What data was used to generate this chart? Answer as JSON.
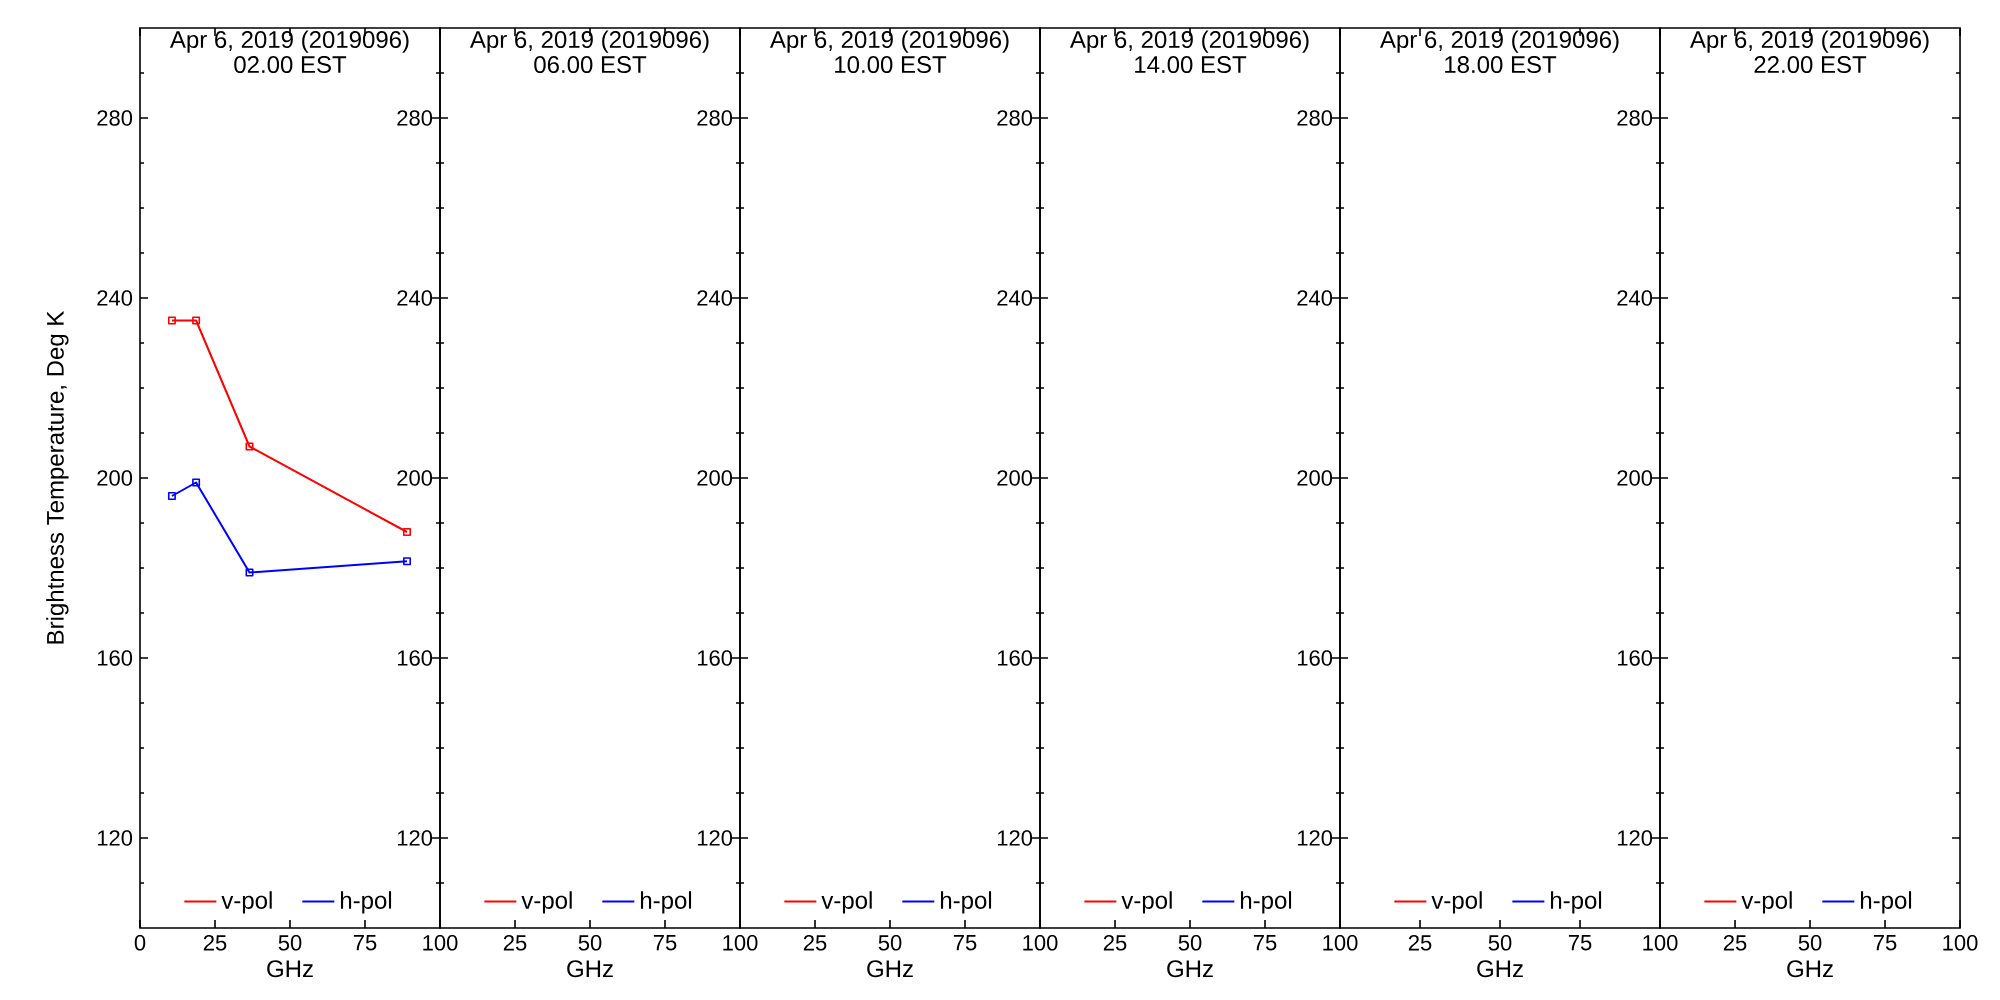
{
  "chart_data": [
    {
      "type": "line",
      "title": "Apr 6, 2019 (2019096)",
      "subtitle": "02.00 EST",
      "xlabel": "GHz",
      "ylabel": "Brightness Temperature, Deg K",
      "x": [
        10.65,
        18.7,
        36.5,
        89
      ],
      "series": [
        {
          "name": "v-pol",
          "color": "#ff0000",
          "values": [
            235,
            235,
            207,
            188
          ]
        },
        {
          "name": "h-pol",
          "color": "#0000ff",
          "values": [
            196,
            199,
            179,
            181.5
          ]
        }
      ],
      "xlim": [
        0,
        100
      ],
      "xticks": [
        0,
        25,
        50,
        75,
        100
      ],
      "ylim": [
        100,
        300
      ],
      "yticks": [
        {
          "value": 110,
          "label": null
        },
        120,
        {
          "value": 130,
          "label": null
        },
        {
          "value": 140,
          "label": null
        },
        {
          "value": 150,
          "label": null
        },
        160,
        {
          "value": 170,
          "label": null
        },
        {
          "value": 180,
          "label": null
        },
        {
          "value": 190,
          "label": null
        },
        200,
        {
          "value": 210,
          "label": null
        },
        {
          "value": 220,
          "label": null
        },
        {
          "value": 230,
          "label": null
        },
        240,
        {
          "value": 250,
          "label": null
        },
        {
          "value": 260,
          "label": null
        },
        {
          "value": 270,
          "label": null
        },
        280,
        {
          "value": 290,
          "label": null
        }
      ],
      "legend": "bottom",
      "marker": "square"
    },
    {
      "type": "line",
      "title": "Apr 6, 2019 (2019096)",
      "subtitle": "06.00 EST",
      "xlabel": "GHz",
      "x": [
        null
      ],
      "series": [
        {
          "name": "v-pol",
          "color": "#ff0000",
          "values": [
            null
          ]
        },
        {
          "name": "h-pol",
          "color": "#0000ff",
          "values": [
            null
          ]
        }
      ],
      "xlim": [
        0,
        100
      ],
      "xticks": [
        25,
        50,
        75,
        100
      ],
      "ylim": [
        100,
        300
      ],
      "yticks": [
        {
          "value": 110,
          "label": null
        },
        120,
        {
          "value": 130,
          "label": null
        },
        {
          "value": 140,
          "label": null
        },
        {
          "value": 150,
          "label": null
        },
        160,
        {
          "value": 170,
          "label": null
        },
        {
          "value": 180,
          "label": null
        },
        {
          "value": 190,
          "label": null
        },
        200,
        {
          "value": 210,
          "label": null
        },
        {
          "value": 220,
          "label": null
        },
        {
          "value": 230,
          "label": null
        },
        240,
        {
          "value": 250,
          "label": null
        },
        {
          "value": 260,
          "label": null
        },
        {
          "value": 270,
          "label": null
        },
        280,
        {
          "value": 290,
          "label": null
        }
      ],
      "legend": "bottom"
    },
    {
      "type": "line",
      "title": "Apr 6, 2019 (2019096)",
      "subtitle": "10.00 EST",
      "xlabel": "GHz",
      "x": [
        null
      ],
      "series": [
        {
          "name": "v-pol",
          "color": "#ff0000",
          "values": [
            null
          ]
        },
        {
          "name": "h-pol",
          "color": "#0000ff",
          "values": [
            null
          ]
        }
      ],
      "xlim": [
        0,
        100
      ],
      "xticks": [
        25,
        50,
        75,
        100
      ],
      "ylim": [
        100,
        300
      ],
      "yticks": [
        {
          "value": 110,
          "label": null
        },
        120,
        {
          "value": 130,
          "label": null
        },
        {
          "value": 140,
          "label": null
        },
        {
          "value": 150,
          "label": null
        },
        160,
        {
          "value": 170,
          "label": null
        },
        {
          "value": 180,
          "label": null
        },
        {
          "value": 190,
          "label": null
        },
        200,
        {
          "value": 210,
          "label": null
        },
        {
          "value": 220,
          "label": null
        },
        {
          "value": 230,
          "label": null
        },
        240,
        {
          "value": 250,
          "label": null
        },
        {
          "value": 260,
          "label": null
        },
        {
          "value": 270,
          "label": null
        },
        280,
        {
          "value": 290,
          "label": null
        }
      ],
      "legend": "bottom"
    },
    {
      "type": "line",
      "title": "Apr 6, 2019 (2019096)",
      "subtitle": "14.00 EST",
      "xlabel": "GHz",
      "x": [
        null
      ],
      "series": [
        {
          "name": "v-pol",
          "color": "#ff0000",
          "values": [
            null
          ]
        },
        {
          "name": "h-pol",
          "color": "#0000ff",
          "values": [
            null
          ]
        }
      ],
      "xlim": [
        0,
        100
      ],
      "xticks": [
        25,
        50,
        75,
        100
      ],
      "ylim": [
        100,
        300
      ],
      "yticks": [
        {
          "value": 110,
          "label": null
        },
        120,
        {
          "value": 130,
          "label": null
        },
        {
          "value": 140,
          "label": null
        },
        {
          "value": 150,
          "label": null
        },
        160,
        {
          "value": 170,
          "label": null
        },
        {
          "value": 180,
          "label": null
        },
        {
          "value": 190,
          "label": null
        },
        200,
        {
          "value": 210,
          "label": null
        },
        {
          "value": 220,
          "label": null
        },
        {
          "value": 230,
          "label": null
        },
        240,
        {
          "value": 250,
          "label": null
        },
        {
          "value": 260,
          "label": null
        },
        {
          "value": 270,
          "label": null
        },
        280,
        {
          "value": 290,
          "label": null
        }
      ],
      "legend": "bottom"
    },
    {
      "type": "line",
      "title": "Apr 6, 2019 (2019096)",
      "subtitle": "18.00 EST",
      "xlabel": "GHz",
      "x": [
        null
      ],
      "series": [
        {
          "name": "v-pol",
          "color": "#ff0000",
          "values": [
            null
          ]
        },
        {
          "name": "h-pol",
          "color": "#0000ff",
          "values": [
            null
          ]
        }
      ],
      "xlim": [
        0,
        100
      ],
      "xticks": [
        25,
        50,
        75,
        100
      ],
      "ylim": [
        100,
        300
      ],
      "yticks": [
        {
          "value": 110,
          "label": null
        },
        120,
        {
          "value": 130,
          "label": null
        },
        {
          "value": 140,
          "label": null
        },
        {
          "value": 150,
          "label": null
        },
        160,
        {
          "value": 170,
          "label": null
        },
        {
          "value": 180,
          "label": null
        },
        {
          "value": 190,
          "label": null
        },
        200,
        {
          "value": 210,
          "label": null
        },
        {
          "value": 220,
          "label": null
        },
        {
          "value": 230,
          "label": null
        },
        240,
        {
          "value": 250,
          "label": null
        },
        {
          "value": 260,
          "label": null
        },
        {
          "value": 270,
          "label": null
        },
        280,
        {
          "value": 290,
          "label": null
        }
      ],
      "legend": "bottom"
    },
    {
      "type": "line",
      "title": "Apr 6, 2019 (2019096)",
      "subtitle": "22.00 EST",
      "xlabel": "GHz",
      "x": [
        null
      ],
      "series": [
        {
          "name": "v-pol",
          "color": "#ff0000",
          "values": [
            null
          ]
        },
        {
          "name": "h-pol",
          "color": "#0000ff",
          "values": [
            null
          ]
        }
      ],
      "xlim": [
        0,
        100
      ],
      "xticks": [
        25,
        50,
        75,
        100
      ],
      "ylim": [
        100,
        300
      ],
      "yticks": [
        {
          "value": 110,
          "label": null
        },
        120,
        {
          "value": 130,
          "label": null
        },
        {
          "value": 140,
          "label": null
        },
        {
          "value": 150,
          "label": null
        },
        160,
        {
          "value": 170,
          "label": null
        },
        {
          "value": 180,
          "label": null
        },
        {
          "value": 190,
          "label": null
        },
        200,
        {
          "value": 210,
          "label": null
        },
        {
          "value": 220,
          "label": null
        },
        {
          "value": 230,
          "label": null
        },
        240,
        {
          "value": 250,
          "label": null
        },
        {
          "value": 260,
          "label": null
        },
        {
          "value": 270,
          "label": null
        },
        280,
        {
          "value": 290,
          "label": null
        }
      ],
      "legend": "bottom"
    }
  ]
}
